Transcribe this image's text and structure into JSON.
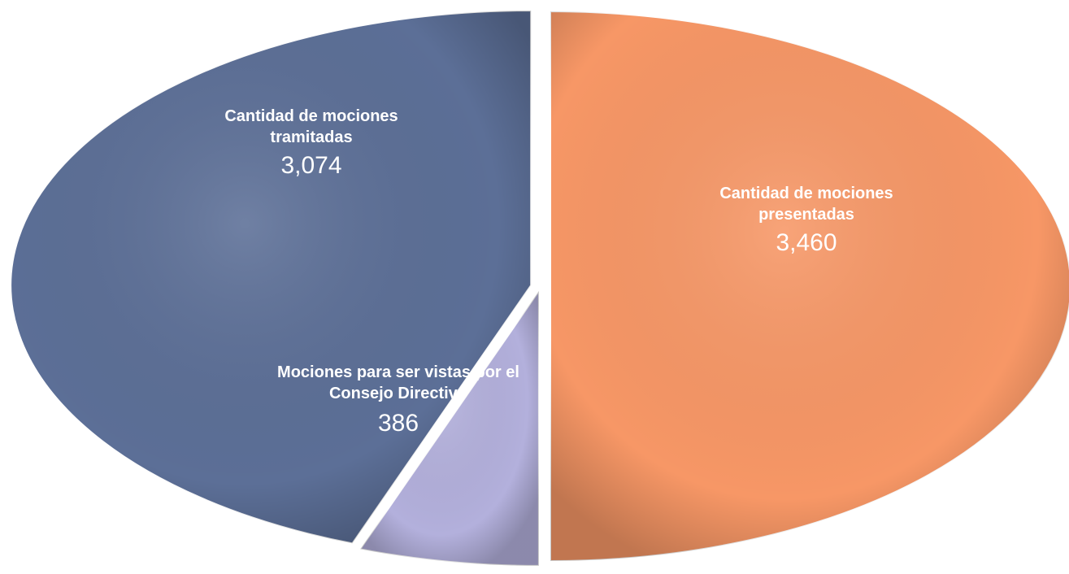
{
  "chart_data": {
    "type": "pie",
    "categories": [
      "Cantidad de mociones presentadas",
      "Mociones para ser vistas por el Consejo Directivo",
      "Cantidad de mociones tramitadas"
    ],
    "values": [
      3460,
      386,
      3074
    ],
    "value_labels": [
      "3,460",
      "386",
      "3,074"
    ],
    "colors": [
      "#f79766",
      "#b3b0dc",
      "#5c6f97"
    ]
  }
}
